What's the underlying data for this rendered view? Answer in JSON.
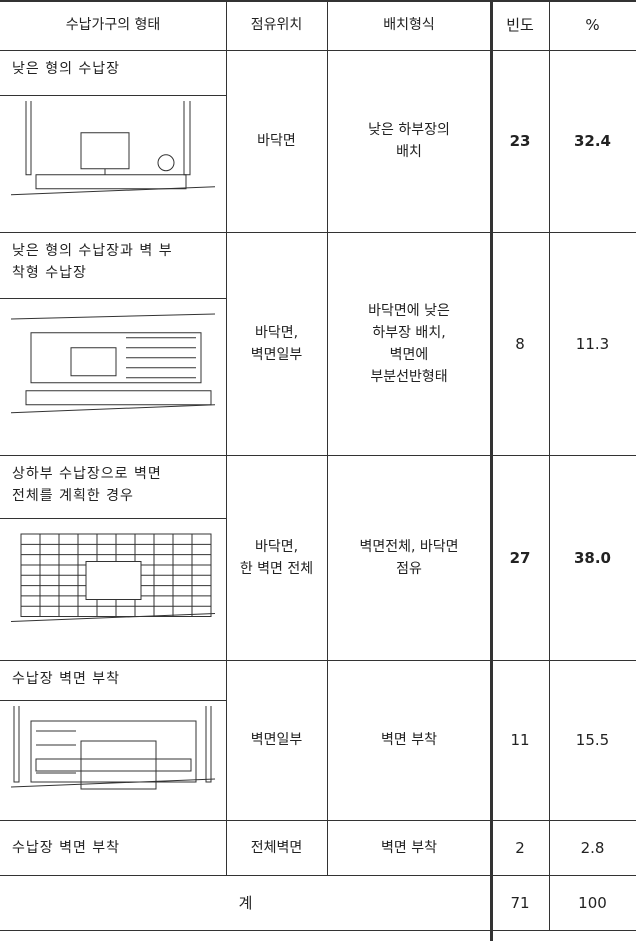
{
  "header": [
    "수납가구의 형태",
    "점유위치",
    "배치형식",
    "빈도",
    "%"
  ],
  "rows": [
    {
      "type": [
        "낮은 형의 수납장"
      ],
      "location": [
        "바닥면"
      ],
      "arrangement": [
        "낮은 하부장의",
        "배치"
      ],
      "frequency": "23",
      "percent": "32.4"
    },
    {
      "type": [
        "낮은 형의 수납장과 벽 부",
        "착형 수납장"
      ],
      "location": [
        "바닥면,",
        "벽면일부"
      ],
      "arrangement": [
        "바닥면에 낮은",
        "하부장 배치,",
        "벽면에",
        "부분선반형태"
      ],
      "frequency": "8",
      "percent": "11.3"
    },
    {
      "type": [
        "상하부 수납장으로 벽면",
        "전체를 계획한 경우"
      ],
      "location": [
        "바닥면,",
        "한 벽면 전체"
      ],
      "arrangement": [
        "벽면전체, 바닥면",
        "점유"
      ],
      "frequency": "27",
      "percent": "38.0"
    },
    {
      "type": [
        "수납장 벽면 부착"
      ],
      "location": [
        "벽면일부"
      ],
      "arrangement": [
        "벽면 부착"
      ],
      "frequency": "11",
      "percent": "15.5"
    },
    {
      "type": [
        "수납장 벽면 부착"
      ],
      "location": [
        "전체벽면"
      ],
      "arrangement": [
        "벽면 부착"
      ],
      "frequency": "2",
      "percent": "2.8"
    }
  ],
  "total": {
    "label": "계",
    "frequency": "71",
    "percent": "100"
  }
}
